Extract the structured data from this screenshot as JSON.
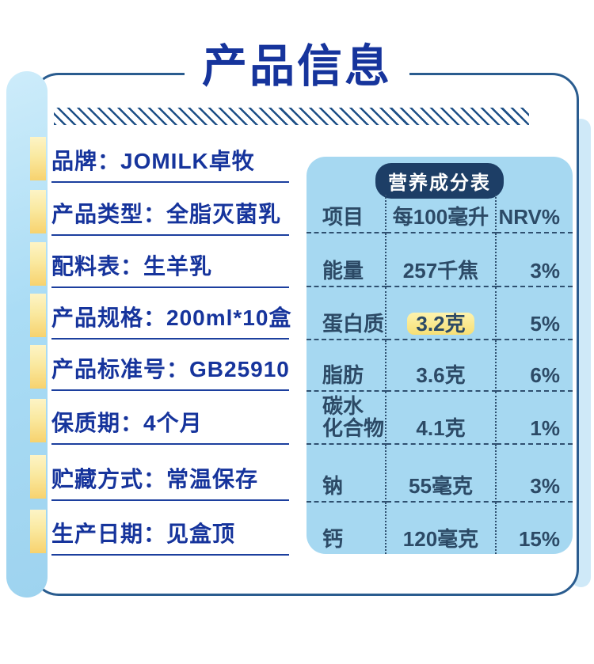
{
  "page": {
    "title": "产品信息"
  },
  "product_info": {
    "separator": "：",
    "items": [
      {
        "label": "品牌",
        "value": "JOMILK卓牧"
      },
      {
        "label": "产品类型",
        "value": "全脂灭菌乳"
      },
      {
        "label": "配料表",
        "value": "生羊乳"
      },
      {
        "label": "产品规格",
        "value": "200ml*10盒"
      },
      {
        "label": "产品标准号",
        "value": "GB25910"
      },
      {
        "label": "保质期",
        "value": "4个月"
      },
      {
        "label": "贮藏方式",
        "value": "常温保存"
      },
      {
        "label": "生产日期",
        "value": "见盒顶"
      }
    ]
  },
  "nutrition": {
    "title": "营养成分表",
    "columns": [
      "项目",
      "每100毫升",
      "NRV%"
    ],
    "rows": [
      {
        "item": "能量",
        "per100ml": "257千焦",
        "nrv": "3%",
        "highlight": false
      },
      {
        "item": "蛋白质",
        "per100ml": "3.2克",
        "nrv": "5%",
        "highlight": true
      },
      {
        "item": "脂肪",
        "per100ml": "3.6克",
        "nrv": "6%",
        "highlight": false
      },
      {
        "item": "碳水\n化合物",
        "per100ml": "4.1克",
        "nrv": "1%",
        "highlight": false
      },
      {
        "item": "钠",
        "per100ml": "55毫克",
        "nrv": "3%",
        "highlight": false
      },
      {
        "item": "钙",
        "per100ml": "120毫克",
        "nrv": "15%",
        "highlight": false
      }
    ]
  },
  "colors": {
    "accent_blue": "#16349c",
    "underline_blue": "#1c3f9e",
    "border_blue": "#2a5c8f",
    "hatch_blue": "#1d4f86",
    "table_bg": "#a6d8f1",
    "table_text": "#2c4a66",
    "table_line": "#2f5070",
    "pill_bg": "#1d3e66",
    "tab_yellow": "#f7d26e",
    "highlight_yellow": "#f7df75",
    "strip_blue": "#aadcf5"
  }
}
